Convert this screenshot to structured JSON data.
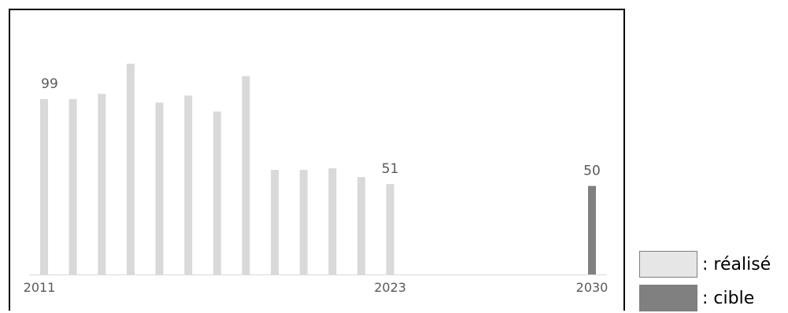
{
  "chart_data": {
    "type": "bar",
    "x": [
      2011,
      2012,
      2013,
      2014,
      2015,
      2016,
      2017,
      2018,
      2019,
      2020,
      2021,
      2022,
      2023,
      2030
    ],
    "tick_labels": [
      "2011",
      "2023",
      "2030"
    ],
    "series": [
      {
        "name": ": réalisé",
        "color": "#d9d9d9",
        "x": [
          2011,
          2012,
          2013,
          2014,
          2015,
          2016,
          2017,
          2018,
          2019,
          2020,
          2021,
          2022,
          2023
        ],
        "values": [
          99,
          99,
          102,
          119,
          97,
          101,
          92,
          112,
          59,
          59,
          60,
          55,
          51
        ]
      },
      {
        "name": ": cible",
        "color": "#808080",
        "x": [
          2030
        ],
        "values": [
          50
        ]
      }
    ],
    "data_labels": [
      {
        "x": 2011,
        "text": "99"
      },
      {
        "x": 2023,
        "text": "51"
      },
      {
        "x": 2030,
        "text": "50"
      }
    ],
    "ylim": [
      0,
      130
    ],
    "grid": false,
    "legend_position": "right-bottom"
  }
}
